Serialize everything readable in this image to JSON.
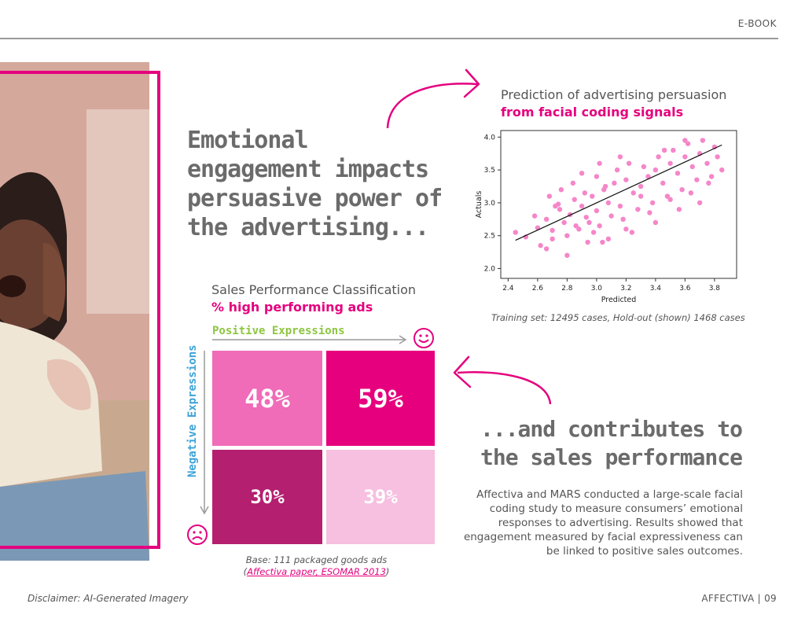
{
  "header": {
    "label": "E-BOOK"
  },
  "headline": "Emotional engagement impacts persuasive power of the advertising...",
  "prediction": {
    "title": "Prediction of advertising persuasion",
    "subtitle": "from facial coding signals",
    "note": "Training set: 12495 cases, Hold-out (shown) 1468 cases"
  },
  "chart_data": {
    "type": "scatter",
    "title": "Prediction of advertising persuasion from facial coding signals",
    "xlabel": "Predicted",
    "ylabel": "Actuals",
    "xlim": [
      2.35,
      3.95
    ],
    "ylim": [
      1.85,
      4.1
    ],
    "xticks": [
      "2.4",
      "2.6",
      "2.8",
      "3.0",
      "3.2",
      "3.4",
      "3.6",
      "3.8"
    ],
    "yticks": [
      "2.0",
      "2.5",
      "3.0",
      "3.5",
      "4.0"
    ],
    "point_color": "#f586c9",
    "trend_line": {
      "x": [
        2.45,
        3.85
      ],
      "y": [
        2.43,
        3.88
      ]
    },
    "series": [
      {
        "name": "Hold-out cases",
        "x": [
          2.45,
          2.52,
          2.6,
          2.66,
          2.7,
          2.75,
          2.78,
          2.82,
          2.85,
          2.9,
          2.93,
          2.97,
          3.0,
          3.05,
          3.08,
          3.12,
          3.16,
          3.2,
          3.25,
          3.3,
          3.35,
          3.4,
          3.45,
          3.5,
          3.55,
          3.6,
          3.65,
          3.7,
          3.75,
          3.8,
          3.85,
          2.62,
          2.7,
          2.8,
          2.88,
          2.95,
          3.02,
          3.1,
          3.18,
          3.28,
          3.38,
          3.48,
          3.58,
          3.68,
          3.78,
          2.68,
          2.76,
          2.84,
          2.92,
          3.0,
          3.06,
          3.14,
          3.22,
          3.32,
          3.42,
          3.52,
          3.62,
          3.72,
          2.58,
          2.72,
          2.86,
          2.98,
          3.04,
          3.2,
          3.36,
          3.5,
          3.64,
          3.76,
          2.74,
          2.9,
          3.02,
          3.16,
          3.3,
          3.46,
          3.6,
          3.82,
          2.66,
          2.8,
          2.94,
          3.08,
          3.24,
          3.4,
          3.56,
          3.7
        ],
        "y": [
          2.55,
          2.48,
          2.62,
          2.75,
          2.58,
          2.9,
          2.7,
          2.82,
          3.05,
          2.95,
          2.78,
          3.1,
          2.88,
          3.2,
          3.0,
          3.3,
          2.95,
          3.35,
          3.15,
          3.25,
          3.4,
          3.5,
          3.3,
          3.6,
          3.45,
          3.7,
          3.55,
          3.75,
          3.6,
          3.85,
          3.5,
          2.35,
          2.45,
          2.5,
          2.6,
          2.7,
          2.65,
          2.8,
          2.75,
          2.9,
          3.0,
          3.1,
          3.2,
          3.35,
          3.4,
          3.1,
          3.2,
          3.3,
          3.15,
          3.4,
          3.25,
          3.5,
          3.6,
          3.55,
          3.7,
          3.8,
          3.9,
          3.95,
          2.8,
          2.95,
          2.65,
          2.55,
          2.4,
          2.6,
          2.85,
          3.05,
          3.15,
          3.3,
          2.98,
          3.45,
          3.6,
          3.7,
          3.1,
          3.8,
          3.95,
          3.7,
          2.3,
          2.2,
          2.4,
          2.45,
          2.55,
          2.7,
          2.9,
          3.0
        ]
      }
    ]
  },
  "sales": {
    "title": "Sales Performance Classification",
    "subtitle": "% high performing ads",
    "positive_label": "Positive Expressions",
    "negative_label": "Negative Expressions",
    "cells": [
      {
        "value": "48%",
        "color": "#f06bb8"
      },
      {
        "value": "59%",
        "color": "#e6007e"
      },
      {
        "value": "30%",
        "color": "#b41f70"
      },
      {
        "value": "39%",
        "color": "#f7bfe0"
      }
    ],
    "base": "Base: 111 packaged goods ads",
    "base_link": "Affectiva paper, ESOMAR 2013",
    "base_open": "(",
    "base_close": ")"
  },
  "contributes": {
    "heading": "...and contributes to the sales performance",
    "body": "Affectiva and MARS conducted a large-scale facial coding study to measure consumers’ emotional responses to advertising. Results showed that engagement measured by facial expressiveness can be linked to positive sales outcomes."
  },
  "footer": {
    "disclaimer": "Disclaimer: AI-Generated Imagery",
    "right": "AFFECTIVA | 09"
  },
  "colors": {
    "accent": "#e5007e",
    "positive": "#8dc63f",
    "negative": "#3da3d8",
    "text": "#555555"
  },
  "icons": [
    "smiley-happy-icon",
    "smiley-sad-icon",
    "curved-arrow-icon"
  ]
}
